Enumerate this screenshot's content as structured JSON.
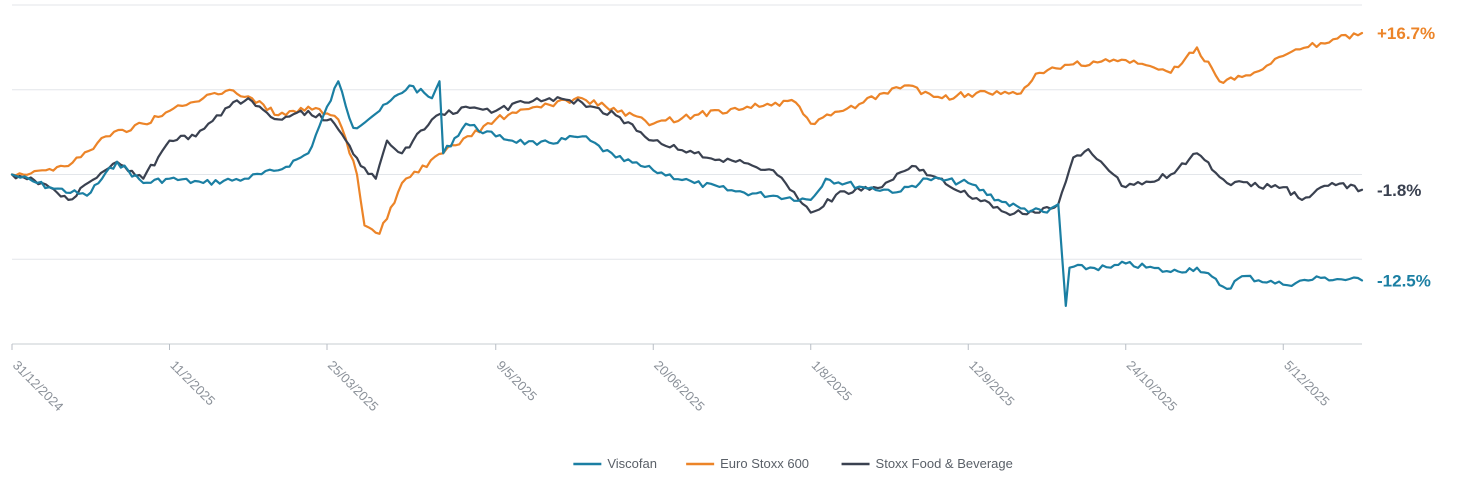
{
  "chart_data": {
    "type": "line",
    "title": "",
    "xlabel": "",
    "ylabel": "",
    "x_range": [
      "2024-12-31",
      "2025-12-26"
    ],
    "y_range_percent": [
      -20,
      20
    ],
    "grid": "horizontal",
    "legend_placement": "bottom-center",
    "x_tick_labels": [
      {
        "label": "31/12/2024",
        "date": "2024-12-31"
      },
      {
        "label": "11/2/2025",
        "date": "2025-02-11"
      },
      {
        "label": "25/03/2025",
        "date": "2025-03-25"
      },
      {
        "label": "9/5/2025",
        "date": "2025-05-09"
      },
      {
        "label": "20/06/2025",
        "date": "2025-06-20"
      },
      {
        "label": "1/8/2025",
        "date": "2025-08-01"
      },
      {
        "label": "12/9/2025",
        "date": "2025-09-12"
      },
      {
        "label": "24/10/2025",
        "date": "2025-10-24"
      },
      {
        "label": "5/12/2025",
        "date": "2025-12-05"
      }
    ],
    "series": [
      {
        "name": "Viscofan",
        "color": "#1b7fa3",
        "end_label": "-12.5%",
        "points": [
          [
            "2024-12-31",
            0.0
          ],
          [
            "2025-01-10",
            -1.5
          ],
          [
            "2025-01-20",
            -2.5
          ],
          [
            "2025-01-28",
            1.5
          ],
          [
            "2025-02-04",
            -1.0
          ],
          [
            "2025-02-11",
            -0.5
          ],
          [
            "2025-02-20",
            -1.0
          ],
          [
            "2025-03-03",
            -0.5
          ],
          [
            "2025-03-12",
            0.5
          ],
          [
            "2025-03-20",
            2.5
          ],
          [
            "2025-03-28",
            11.0
          ],
          [
            "2025-04-01",
            5.5
          ],
          [
            "2025-04-08",
            7.5
          ],
          [
            "2025-04-16",
            10.5
          ],
          [
            "2025-04-22",
            9.0
          ],
          [
            "2025-04-24",
            11.0
          ],
          [
            "2025-04-25",
            2.5
          ],
          [
            "2025-05-01",
            6.0
          ],
          [
            "2025-05-09",
            4.5
          ],
          [
            "2025-05-20",
            3.5
          ],
          [
            "2025-06-01",
            4.5
          ],
          [
            "2025-06-10",
            2.0
          ],
          [
            "2025-06-20",
            0.5
          ],
          [
            "2025-07-01",
            -1.0
          ],
          [
            "2025-07-12",
            -2.0
          ],
          [
            "2025-07-22",
            -2.5
          ],
          [
            "2025-08-01",
            -3.0
          ],
          [
            "2025-08-05",
            -0.5
          ],
          [
            "2025-08-15",
            -1.5
          ],
          [
            "2025-08-25",
            -2.0
          ],
          [
            "2025-09-01",
            -0.5
          ],
          [
            "2025-09-12",
            -1.0
          ],
          [
            "2025-09-20",
            -3.0
          ],
          [
            "2025-09-26",
            -4.0
          ],
          [
            "2025-10-03",
            -4.5
          ],
          [
            "2025-10-06",
            -3.5
          ],
          [
            "2025-10-08",
            -15.5
          ],
          [
            "2025-10-09",
            -11.0
          ],
          [
            "2025-10-20",
            -11.0
          ],
          [
            "2025-10-24",
            -10.5
          ],
          [
            "2025-11-05",
            -11.5
          ],
          [
            "2025-11-12",
            -11.0
          ],
          [
            "2025-11-20",
            -13.5
          ],
          [
            "2025-11-24",
            -12.0
          ],
          [
            "2025-12-05",
            -13.0
          ],
          [
            "2025-12-15",
            -12.2
          ],
          [
            "2025-12-26",
            -12.5
          ]
        ]
      },
      {
        "name": "Euro Stoxx 600",
        "color": "#ec8428",
        "end_label": "+16.7%",
        "points": [
          [
            "2024-12-31",
            0.0
          ],
          [
            "2025-01-08",
            0.5
          ],
          [
            "2025-01-15",
            1.0
          ],
          [
            "2025-01-25",
            4.5
          ],
          [
            "2025-02-04",
            6.0
          ],
          [
            "2025-02-11",
            7.5
          ],
          [
            "2025-02-20",
            9.0
          ],
          [
            "2025-02-27",
            10.0
          ],
          [
            "2025-03-05",
            9.0
          ],
          [
            "2025-03-12",
            7.0
          ],
          [
            "2025-03-20",
            8.0
          ],
          [
            "2025-03-28",
            6.5
          ],
          [
            "2025-04-02",
            0.0
          ],
          [
            "2025-04-04",
            -6.0
          ],
          [
            "2025-04-08",
            -7.0
          ],
          [
            "2025-04-14",
            -1.0
          ],
          [
            "2025-04-25",
            2.5
          ],
          [
            "2025-05-09",
            6.5
          ],
          [
            "2025-05-20",
            8.0
          ],
          [
            "2025-06-01",
            9.0
          ],
          [
            "2025-06-20",
            6.0
          ],
          [
            "2025-07-01",
            7.0
          ],
          [
            "2025-07-15",
            8.0
          ],
          [
            "2025-07-28",
            8.5
          ],
          [
            "2025-08-01",
            6.0
          ],
          [
            "2025-08-15",
            8.5
          ],
          [
            "2025-08-26",
            10.5
          ],
          [
            "2025-09-05",
            9.0
          ],
          [
            "2025-09-12",
            9.5
          ],
          [
            "2025-09-25",
            9.5
          ],
          [
            "2025-10-01",
            12.0
          ],
          [
            "2025-10-10",
            13.0
          ],
          [
            "2025-10-24",
            13.5
          ],
          [
            "2025-11-05",
            12.0
          ],
          [
            "2025-11-12",
            15.0
          ],
          [
            "2025-11-18",
            11.0
          ],
          [
            "2025-11-24",
            11.5
          ],
          [
            "2025-12-05",
            14.0
          ],
          [
            "2025-12-15",
            15.5
          ],
          [
            "2025-12-26",
            16.7
          ]
        ]
      },
      {
        "name": "Stoxx Food & Beverage",
        "color": "#3a4150",
        "end_label": "-1.8%",
        "points": [
          [
            "2024-12-31",
            0.0
          ],
          [
            "2025-01-08",
            -1.0
          ],
          [
            "2025-01-15",
            -3.0
          ],
          [
            "2025-01-28",
            1.5
          ],
          [
            "2025-02-04",
            -0.5
          ],
          [
            "2025-02-11",
            4.0
          ],
          [
            "2025-02-18",
            4.5
          ],
          [
            "2025-02-27",
            8.0
          ],
          [
            "2025-03-04",
            9.0
          ],
          [
            "2025-03-12",
            6.5
          ],
          [
            "2025-03-20",
            7.5
          ],
          [
            "2025-03-27",
            6.0
          ],
          [
            "2025-04-03",
            1.0
          ],
          [
            "2025-04-07",
            -0.5
          ],
          [
            "2025-04-10",
            4.0
          ],
          [
            "2025-04-14",
            2.5
          ],
          [
            "2025-04-22",
            6.5
          ],
          [
            "2025-05-01",
            8.0
          ],
          [
            "2025-05-09",
            7.5
          ],
          [
            "2025-05-20",
            9.0
          ],
          [
            "2025-06-01",
            8.5
          ],
          [
            "2025-06-10",
            7.0
          ],
          [
            "2025-06-20",
            4.0
          ],
          [
            "2025-07-01",
            2.5
          ],
          [
            "2025-07-12",
            1.5
          ],
          [
            "2025-07-22",
            0.5
          ],
          [
            "2025-08-01",
            -4.5
          ],
          [
            "2025-08-10",
            -2.0
          ],
          [
            "2025-08-20",
            -1.5
          ],
          [
            "2025-08-28",
            1.0
          ],
          [
            "2025-09-05",
            -0.5
          ],
          [
            "2025-09-12",
            -2.5
          ],
          [
            "2025-09-22",
            -4.5
          ],
          [
            "2025-10-01",
            -4.5
          ],
          [
            "2025-10-06",
            -3.5
          ],
          [
            "2025-10-10",
            2.0
          ],
          [
            "2025-10-14",
            3.0
          ],
          [
            "2025-10-24",
            -1.5
          ],
          [
            "2025-11-05",
            0.0
          ],
          [
            "2025-11-12",
            2.5
          ],
          [
            "2025-11-20",
            -1.0
          ],
          [
            "2025-12-05",
            -1.5
          ],
          [
            "2025-12-10",
            -3.0
          ],
          [
            "2025-12-18",
            -1.0
          ],
          [
            "2025-12-26",
            -1.8
          ]
        ]
      }
    ]
  }
}
